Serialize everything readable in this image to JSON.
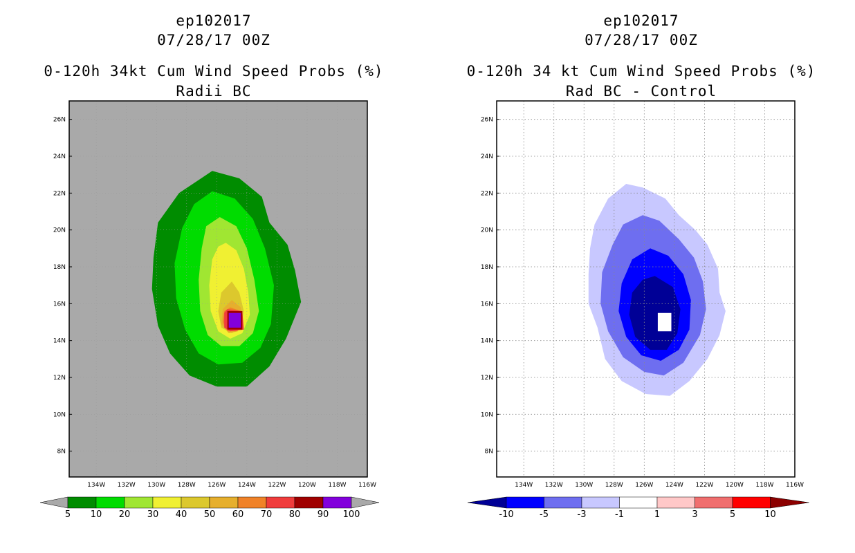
{
  "colors": {
    "background_left": "#a9a9a9",
    "cmap_prob": [
      "#008c00",
      "#00dc00",
      "#a0e632",
      "#f0f032",
      "#dcc82d",
      "#e6af2d",
      "#f08228",
      "#f03c3c",
      "#a00000",
      "#8200dc"
    ],
    "cmap_diff": [
      "#000096",
      "#0000ff",
      "#6e6ef0",
      "#c8c8ff",
      "#ffffff",
      "#ffc8c8",
      "#f06e6e",
      "#ff0000",
      "#8c0000"
    ],
    "grid": "#888888"
  },
  "panels": [
    {
      "id": "left",
      "title": {
        "storm": "ep102017",
        "date": "07/28/17 00Z",
        "product": "0-120h 34kt Cum Wind Speed Probs (%)",
        "subtitle": "Radii BC"
      }
    },
    {
      "id": "right",
      "title": {
        "storm": "ep102017",
        "date": "07/28/17 00Z",
        "product": "0-120h 34 kt Cum Wind Speed Probs (%)",
        "subtitle": "Rad BC - Control"
      }
    }
  ],
  "chart_data": [
    {
      "type": "contour",
      "title": "0-120h 34kt Cum Wind Speed Probs (%) Radii BC",
      "x_label_values": [
        -134,
        -132,
        -130,
        -128,
        -126,
        -124,
        -122,
        -120,
        -118,
        -116
      ],
      "x_tick_labels": [
        "134W",
        "132W",
        "130W",
        "128W",
        "126W",
        "124W",
        "122W",
        "120W",
        "118W",
        "116W"
      ],
      "y_tick_values": [
        8,
        10,
        12,
        14,
        16,
        18,
        20,
        22,
        24,
        26
      ],
      "y_tick_labels": [
        "8N",
        "10N",
        "12N",
        "14N",
        "16N",
        "18N",
        "20N",
        "22N",
        "24N",
        "26N"
      ],
      "xlim": [
        -135.8,
        -116.0
      ],
      "ylim": [
        6.6,
        27.0
      ],
      "grid": false,
      "colorbar": {
        "levels": [
          5,
          10,
          20,
          30,
          40,
          50,
          60,
          70,
          80,
          90,
          100
        ],
        "labels": [
          "5",
          "10",
          "20",
          "30",
          "40",
          "50",
          "60",
          "70",
          "80",
          "90",
          "100"
        ],
        "extend": "both"
      },
      "contours": [
        {
          "level": 5,
          "ring": [
            [
              -126.3,
              23.2
            ],
            [
              -124.5,
              22.8
            ],
            [
              -123.0,
              21.8
            ],
            [
              -122.5,
              20.4
            ],
            [
              -121.3,
              19.2
            ],
            [
              -120.8,
              17.8
            ],
            [
              -120.4,
              16.1
            ],
            [
              -121.4,
              14.1
            ],
            [
              -122.5,
              12.6
            ],
            [
              -124.0,
              11.5
            ],
            [
              -126.0,
              11.5
            ],
            [
              -127.8,
              12.1
            ],
            [
              -129.1,
              13.3
            ],
            [
              -129.9,
              14.8
            ],
            [
              -130.3,
              16.8
            ],
            [
              -130.2,
              18.5
            ],
            [
              -129.9,
              20.4
            ],
            [
              -128.5,
              22.0
            ]
          ]
        },
        {
          "level": 10,
          "ring": [
            [
              -126.3,
              22.1
            ],
            [
              -124.8,
              21.7
            ],
            [
              -123.6,
              20.6
            ],
            [
              -122.8,
              19.0
            ],
            [
              -122.2,
              17.0
            ],
            [
              -122.4,
              14.9
            ],
            [
              -123.1,
              13.6
            ],
            [
              -124.3,
              12.8
            ],
            [
              -125.9,
              12.7
            ],
            [
              -127.2,
              13.3
            ],
            [
              -128.1,
              14.6
            ],
            [
              -128.7,
              16.3
            ],
            [
              -128.8,
              18.2
            ],
            [
              -128.3,
              20.1
            ],
            [
              -127.5,
              21.4
            ]
          ]
        },
        {
          "level": 20,
          "ring": [
            [
              -125.8,
              20.7
            ],
            [
              -124.7,
              20.2
            ],
            [
              -124.0,
              19.0
            ],
            [
              -123.5,
              17.3
            ],
            [
              -123.2,
              15.6
            ],
            [
              -123.6,
              14.4
            ],
            [
              -124.5,
              13.7
            ],
            [
              -125.7,
              13.7
            ],
            [
              -126.6,
              14.3
            ],
            [
              -127.1,
              15.6
            ],
            [
              -127.2,
              17.3
            ],
            [
              -127.0,
              19.0
            ],
            [
              -126.7,
              20.2
            ]
          ]
        },
        {
          "level": 30,
          "ring": [
            [
              -125.4,
              19.3
            ],
            [
              -124.7,
              18.9
            ],
            [
              -124.2,
              17.9
            ],
            [
              -123.9,
              16.6
            ],
            [
              -123.8,
              15.4
            ],
            [
              -124.3,
              14.4
            ],
            [
              -125.1,
              14.1
            ],
            [
              -125.9,
              14.5
            ],
            [
              -126.4,
              15.6
            ],
            [
              -126.5,
              17.0
            ],
            [
              -126.3,
              18.4
            ],
            [
              -125.9,
              19.1
            ]
          ]
        },
        {
          "level": 40,
          "ring": [
            [
              -125.0,
              17.2
            ],
            [
              -124.5,
              16.6
            ],
            [
              -124.2,
              15.6
            ],
            [
              -124.4,
              14.7
            ],
            [
              -125.0,
              14.4
            ],
            [
              -125.7,
              14.7
            ],
            [
              -125.9,
              15.6
            ],
            [
              -125.7,
              16.6
            ]
          ]
        },
        {
          "level": 50,
          "ring": [
            [
              -125.0,
              16.2
            ],
            [
              -124.4,
              15.8
            ],
            [
              -124.3,
              15.0
            ],
            [
              -124.6,
              14.5
            ],
            [
              -125.2,
              14.4
            ],
            [
              -125.7,
              14.9
            ],
            [
              -125.6,
              15.7
            ]
          ]
        },
        {
          "level": 60,
          "ring": [
            [
              -125.1,
              15.8
            ],
            [
              -124.4,
              15.6
            ],
            [
              -124.3,
              14.8
            ],
            [
              -124.7,
              14.5
            ],
            [
              -125.3,
              14.5
            ],
            [
              -125.6,
              15.0
            ],
            [
              -125.5,
              15.6
            ]
          ]
        },
        {
          "level": 70,
          "ring": [
            [
              -125.3,
              15.7
            ],
            [
              -124.3,
              15.6
            ],
            [
              -124.2,
              14.6
            ],
            [
              -125.1,
              14.5
            ],
            [
              -125.5,
              14.7
            ],
            [
              -125.5,
              15.5
            ]
          ]
        },
        {
          "level": 80,
          "ring": [
            [
              -125.3,
              15.6
            ],
            [
              -124.3,
              15.6
            ],
            [
              -124.3,
              14.6
            ],
            [
              -125.3,
              14.6
            ]
          ]
        },
        {
          "level": 90,
          "ring": [
            [
              -125.2,
              15.5
            ],
            [
              -124.4,
              15.5
            ],
            [
              -124.4,
              14.7
            ],
            [
              -125.2,
              14.7
            ]
          ]
        }
      ]
    },
    {
      "type": "contour",
      "title": "0-120h 34 kt Cum Wind Speed Probs (%) Rad BC - Control",
      "x_label_values": [
        -134,
        -132,
        -130,
        -128,
        -126,
        -124,
        -122,
        -120,
        -118,
        -116
      ],
      "x_tick_labels": [
        "134W",
        "132W",
        "130W",
        "128W",
        "126W",
        "124W",
        "122W",
        "120W",
        "118W",
        "116W"
      ],
      "y_tick_values": [
        8,
        10,
        12,
        14,
        16,
        18,
        20,
        22,
        24,
        26
      ],
      "y_tick_labels": [
        "8N",
        "10N",
        "12N",
        "14N",
        "16N",
        "18N",
        "20N",
        "22N",
        "24N",
        "26N"
      ],
      "xlim": [
        -135.8,
        -116.0
      ],
      "ylim": [
        6.6,
        27.0
      ],
      "grid": true,
      "colorbar": {
        "levels": [
          -10,
          -5,
          -3,
          -1,
          1,
          3,
          5,
          10
        ],
        "labels": [
          "-10",
          "-5",
          "-3",
          "-1",
          "1",
          "3",
          "5",
          "10"
        ],
        "extend": "both"
      },
      "contours": [
        {
          "level": -1,
          "ring": [
            [
              -127.2,
              22.5
            ],
            [
              -126.1,
              22.3
            ],
            [
              -124.6,
              21.7
            ],
            [
              -123.7,
              20.8
            ],
            [
              -122.6,
              20.0
            ],
            [
              -121.8,
              19.2
            ],
            [
              -121.1,
              17.9
            ],
            [
              -121.0,
              16.6
            ],
            [
              -120.6,
              15.6
            ],
            [
              -121.0,
              14.3
            ],
            [
              -121.8,
              13.0
            ],
            [
              -123.0,
              11.8
            ],
            [
              -124.3,
              11.0
            ],
            [
              -125.9,
              11.1
            ],
            [
              -127.5,
              11.8
            ],
            [
              -128.6,
              13.0
            ],
            [
              -129.1,
              14.7
            ],
            [
              -129.7,
              16.0
            ],
            [
              -129.7,
              17.6
            ],
            [
              -129.6,
              19.0
            ],
            [
              -129.3,
              20.3
            ],
            [
              -128.4,
              21.7
            ]
          ]
        },
        {
          "level": -3,
          "ring": [
            [
              -126.1,
              20.8
            ],
            [
              -125.0,
              20.5
            ],
            [
              -123.7,
              19.5
            ],
            [
              -122.7,
              18.5
            ],
            [
              -122.1,
              17.2
            ],
            [
              -121.9,
              15.7
            ],
            [
              -122.3,
              14.3
            ],
            [
              -123.4,
              12.8
            ],
            [
              -124.7,
              12.1
            ],
            [
              -126.0,
              12.3
            ],
            [
              -127.4,
              13.1
            ],
            [
              -128.4,
              14.5
            ],
            [
              -128.9,
              16.0
            ],
            [
              -128.8,
              17.7
            ],
            [
              -128.1,
              19.2
            ],
            [
              -127.4,
              20.3
            ]
          ]
        },
        {
          "level": -5,
          "ring": [
            [
              -125.6,
              19.0
            ],
            [
              -124.4,
              18.6
            ],
            [
              -123.4,
              17.6
            ],
            [
              -122.9,
              16.2
            ],
            [
              -123.0,
              14.6
            ],
            [
              -123.7,
              13.5
            ],
            [
              -124.9,
              12.9
            ],
            [
              -126.2,
              13.2
            ],
            [
              -127.2,
              14.2
            ],
            [
              -127.7,
              15.6
            ],
            [
              -127.5,
              17.1
            ],
            [
              -126.8,
              18.4
            ]
          ]
        },
        {
          "level": -10,
          "ring": [
            [
              -125.3,
              17.5
            ],
            [
              -124.1,
              16.9
            ],
            [
              -123.6,
              15.7
            ],
            [
              -123.8,
              14.4
            ],
            [
              -124.5,
              13.5
            ],
            [
              -125.6,
              13.5
            ],
            [
              -126.6,
              14.2
            ],
            [
              -127.0,
              15.4
            ],
            [
              -126.8,
              16.6
            ],
            [
              -126.1,
              17.3
            ]
          ]
        },
        {
          "level": 1,
          "ring": [
            [
              -125.1,
              15.5
            ],
            [
              -124.2,
              15.5
            ],
            [
              -124.2,
              14.5
            ],
            [
              -125.1,
              14.5
            ]
          ]
        }
      ]
    }
  ]
}
